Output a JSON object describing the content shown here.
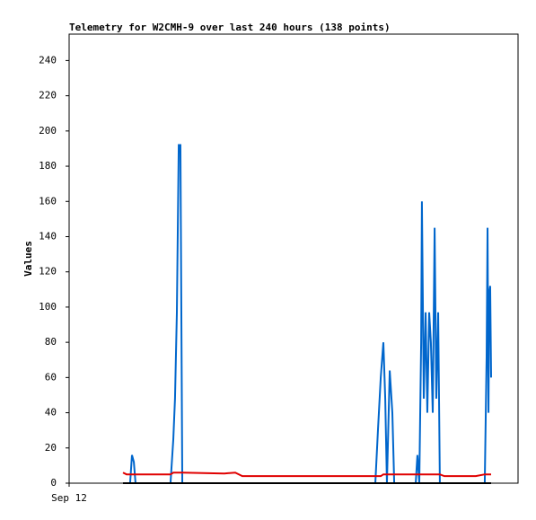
{
  "chart_data": {
    "type": "line",
    "title": "Telemetry for W2CMH-9 over last 240 hours (138 points)",
    "ylabel": "Values",
    "xlim": [
      0,
      240
    ],
    "xticks": [
      {
        "value": 0,
        "label": "Sep 12"
      }
    ],
    "ylim": [
      0,
      255
    ],
    "yticks": [
      0,
      20,
      40,
      60,
      80,
      100,
      120,
      140,
      160,
      180,
      200,
      220,
      240
    ],
    "x": [
      28.8,
      30.7,
      32.6,
      33.6,
      34.6,
      35.5,
      54.2,
      55.7,
      56.6,
      57.6,
      58.6,
      59.5,
      60.5,
      83.0,
      88.8,
      92.6,
      163.7,
      165.1,
      166.6,
      168.0,
      169.0,
      169.9,
      171.4,
      172.8,
      173.8,
      185.3,
      186.2,
      187.2,
      188.2,
      188.6,
      189.6,
      190.6,
      191.5,
      192.5,
      193.4,
      194.4,
      195.4,
      196.3,
      197.3,
      198.2,
      200.6,
      217.4,
      222.2,
      223.2,
      223.7,
      224.2,
      224.6,
      225.1,
      225.6
    ],
    "series": [
      {
        "color": "#0066cc",
        "values": [
          0,
          0,
          0,
          16,
          12,
          0,
          0,
          25,
          48,
          97,
          192,
          192,
          0,
          0,
          0,
          0,
          0,
          30,
          60,
          80,
          48,
          0,
          64,
          40,
          0,
          0,
          16,
          0,
          80,
          160,
          48,
          97,
          40,
          97,
          80,
          40,
          145,
          48,
          97,
          0,
          0,
          0,
          0,
          72,
          145,
          40,
          108,
          112,
          60
        ]
      },
      {
        "color": "#e00000",
        "values": [
          6,
          5,
          5,
          5,
          5,
          5,
          5,
          6,
          6,
          6,
          6,
          6,
          6,
          5.5,
          6,
          4,
          4,
          4,
          4,
          5,
          5,
          5,
          5,
          5,
          5,
          5,
          5,
          5,
          5,
          5,
          5,
          5,
          5,
          5,
          5,
          5,
          5,
          5,
          5,
          5,
          4,
          4,
          5,
          5,
          5,
          5,
          5,
          5,
          5
        ]
      },
      {
        "color": "#000000",
        "values": [
          0,
          0,
          0,
          0,
          0,
          0,
          0,
          0,
          0,
          0,
          0,
          0,
          0,
          0,
          0,
          0,
          0,
          0,
          0,
          0,
          0,
          0,
          0,
          0,
          0,
          0,
          0,
          0,
          0,
          0,
          0,
          0,
          0,
          0,
          0,
          0,
          0,
          0,
          0,
          0,
          0,
          0,
          0,
          0,
          0,
          0,
          0,
          0,
          0
        ]
      }
    ]
  }
}
